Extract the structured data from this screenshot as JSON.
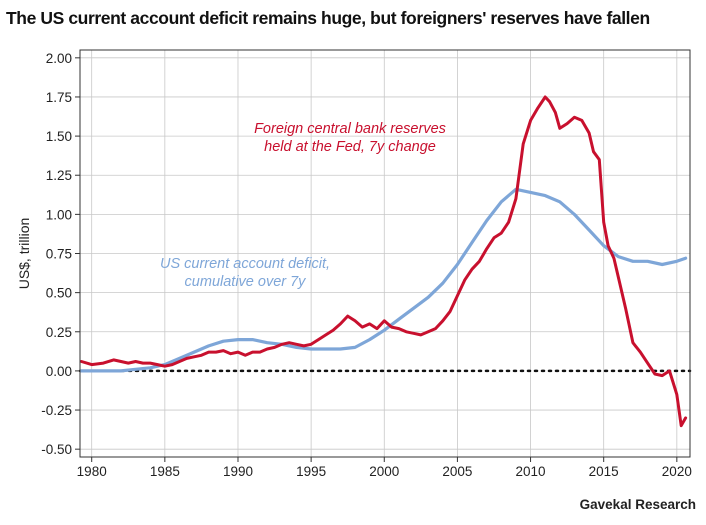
{
  "title": "The US current account deficit remains huge, but foreigners' reserves have fallen",
  "source": "Gavekal Research",
  "colors": {
    "fed_reserves": "#c8102e",
    "current_account": "#7ea6d8",
    "grid": "#c8c8c8",
    "zero_line": "#111111"
  },
  "chart_data": {
    "type": "line",
    "title": "The US current account deficit remains huge, but foreigners' reserves have fallen",
    "xlabel": "",
    "ylabel": "US$, trillion",
    "xlim": [
      1979.2,
      2020.9
    ],
    "ylim": [
      -0.55,
      2.05
    ],
    "x_ticks": [
      1980,
      1985,
      1990,
      1995,
      2000,
      2005,
      2010,
      2015,
      2020
    ],
    "x_tick_labels": [
      "1980",
      "1985",
      "1990",
      "1995",
      "2000",
      "2005",
      "2010",
      "2015",
      "2020"
    ],
    "y_ticks": [
      -0.5,
      -0.25,
      0,
      0.25,
      0.5,
      0.75,
      1,
      1.25,
      1.5,
      1.75,
      2
    ],
    "y_tick_labels": [
      "-0.50",
      "-0.25",
      "0.00",
      "0.25",
      "0.50",
      "0.75",
      "1.00",
      "1.25",
      "1.50",
      "1.75",
      "2.00"
    ],
    "grid": true,
    "zero_line": "dotted",
    "series": [
      {
        "name": "Foreign central bank reserves held at the Fed, 7y change",
        "label_lines": [
          "Foreign central bank reserves",
          "held at the Fed, 7y change"
        ],
        "color": "#c8102e",
        "x": [
          1979.3,
          1980,
          1980.8,
          1981.5,
          1982,
          1982.5,
          1983,
          1983.5,
          1984,
          1984.5,
          1985,
          1985.5,
          1986,
          1986.5,
          1987,
          1987.5,
          1988,
          1988.5,
          1989,
          1989.5,
          1990,
          1990.5,
          1991,
          1991.5,
          1992,
          1992.5,
          1993,
          1993.5,
          1994,
          1994.5,
          1995,
          1995.5,
          1996,
          1996.5,
          1997,
          1997.5,
          1998,
          1998.5,
          1999,
          1999.5,
          2000,
          2000.5,
          2001,
          2001.5,
          2002,
          2002.5,
          2003,
          2003.5,
          2004,
          2004.5,
          2005,
          2005.5,
          2006,
          2006.5,
          2007,
          2007.5,
          2008,
          2008.5,
          2009,
          2009.5,
          2010,
          2010.5,
          2011,
          2011.3,
          2011.7,
          2012,
          2012.5,
          2013,
          2013.5,
          2014,
          2014.3,
          2014.7,
          2015,
          2015.3,
          2015.7,
          2016,
          2016.5,
          2017,
          2017.5,
          2018,
          2018.5,
          2019,
          2019.5,
          2020,
          2020.3,
          2020.6
        ],
        "y": [
          0.06,
          0.04,
          0.05,
          0.07,
          0.06,
          0.05,
          0.06,
          0.05,
          0.05,
          0.04,
          0.03,
          0.04,
          0.06,
          0.08,
          0.09,
          0.1,
          0.12,
          0.12,
          0.13,
          0.11,
          0.12,
          0.1,
          0.12,
          0.12,
          0.14,
          0.15,
          0.17,
          0.18,
          0.17,
          0.16,
          0.17,
          0.2,
          0.23,
          0.26,
          0.3,
          0.35,
          0.32,
          0.28,
          0.3,
          0.27,
          0.32,
          0.28,
          0.27,
          0.25,
          0.24,
          0.23,
          0.25,
          0.27,
          0.32,
          0.38,
          0.48,
          0.58,
          0.65,
          0.7,
          0.78,
          0.85,
          0.88,
          0.95,
          1.1,
          1.45,
          1.6,
          1.68,
          1.75,
          1.72,
          1.65,
          1.55,
          1.58,
          1.62,
          1.6,
          1.52,
          1.4,
          1.35,
          0.95,
          0.8,
          0.72,
          0.6,
          0.4,
          0.18,
          0.12,
          0.05,
          -0.02,
          -0.03,
          0.0,
          -0.15,
          -0.35,
          -0.3
        ]
      },
      {
        "name": "US current account deficit, cumulative over 7y",
        "label_lines": [
          "US current account deficit,",
          "cumulative over 7y"
        ],
        "color": "#7ea6d8",
        "x": [
          1979.3,
          1980,
          1981,
          1982,
          1983,
          1984,
          1985,
          1986,
          1987,
          1988,
          1989,
          1990,
          1991,
          1992,
          1993,
          1994,
          1995,
          1996,
          1997,
          1998,
          1999,
          2000,
          2001,
          2002,
          2003,
          2004,
          2005,
          2006,
          2007,
          2008,
          2009,
          2010,
          2011,
          2012,
          2013,
          2014,
          2015,
          2016,
          2017,
          2018,
          2019,
          2020,
          2020.6
        ],
        "y": [
          0.0,
          0.0,
          0.0,
          0.0,
          0.01,
          0.02,
          0.04,
          0.08,
          0.12,
          0.16,
          0.19,
          0.2,
          0.2,
          0.18,
          0.17,
          0.15,
          0.14,
          0.14,
          0.14,
          0.15,
          0.2,
          0.26,
          0.33,
          0.4,
          0.47,
          0.56,
          0.68,
          0.82,
          0.96,
          1.08,
          1.16,
          1.14,
          1.12,
          1.08,
          1.0,
          0.9,
          0.8,
          0.73,
          0.7,
          0.7,
          0.68,
          0.7,
          0.72
        ]
      }
    ]
  }
}
